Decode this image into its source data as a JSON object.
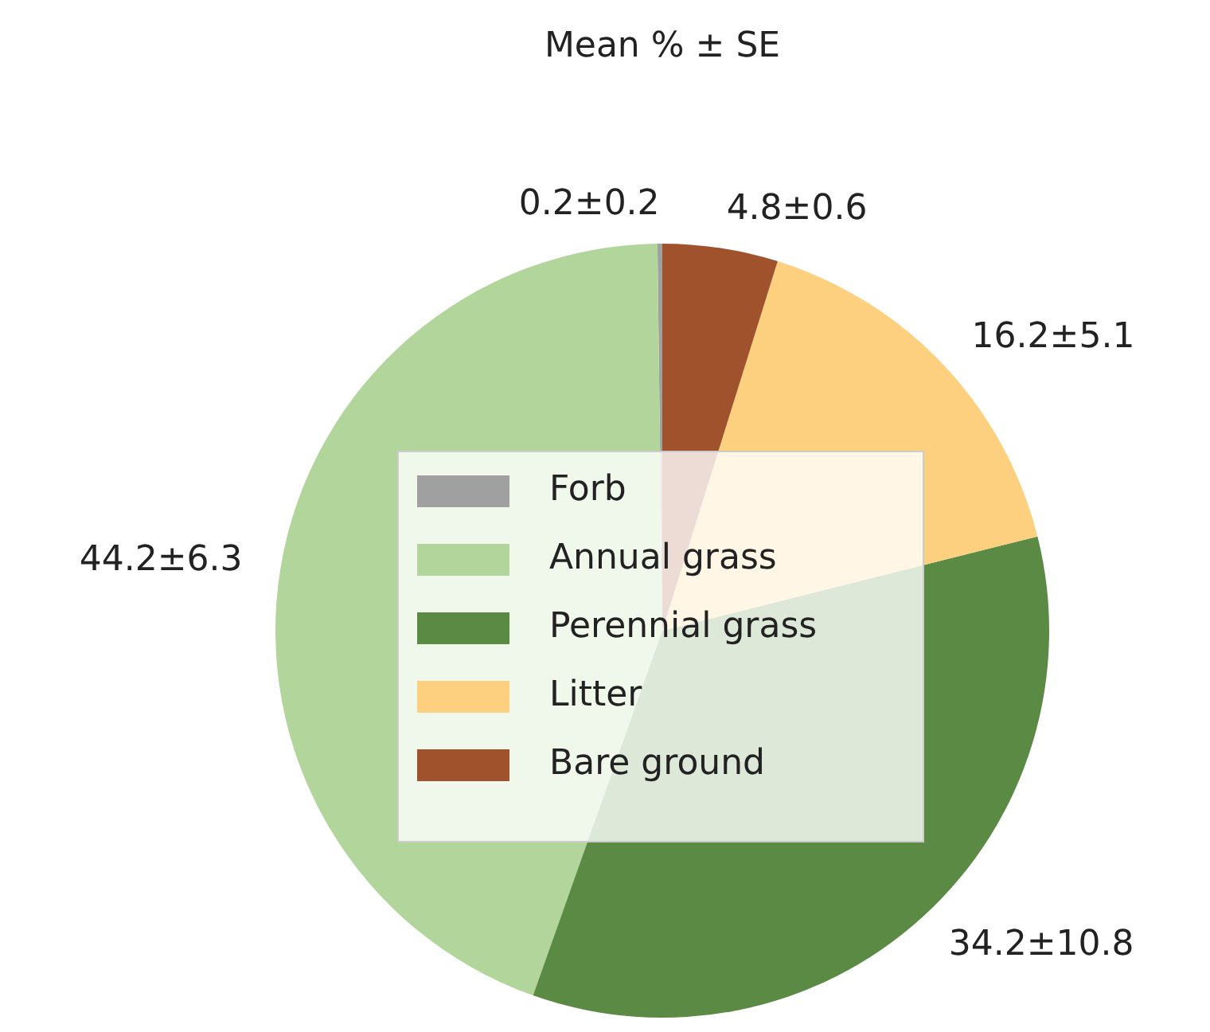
{
  "chart_data": {
    "type": "pie",
    "title": "Mean % ± SE",
    "categories": [
      "Forb",
      "Annual grass",
      "Perennial grass",
      "Litter",
      "Bare ground"
    ],
    "values": [
      0.2,
      44.2,
      34.2,
      16.2,
      4.8
    ],
    "colors": [
      "#a0a0a0",
      "#b2d59b",
      "#5a8a43",
      "#fdd07f",
      "#a0522d"
    ],
    "value_labels": [
      "0.2±0.2",
      "44.2±6.3",
      "34.2±10.8",
      "16.2±5.1",
      "4.8±0.6"
    ],
    "legend": "center"
  }
}
